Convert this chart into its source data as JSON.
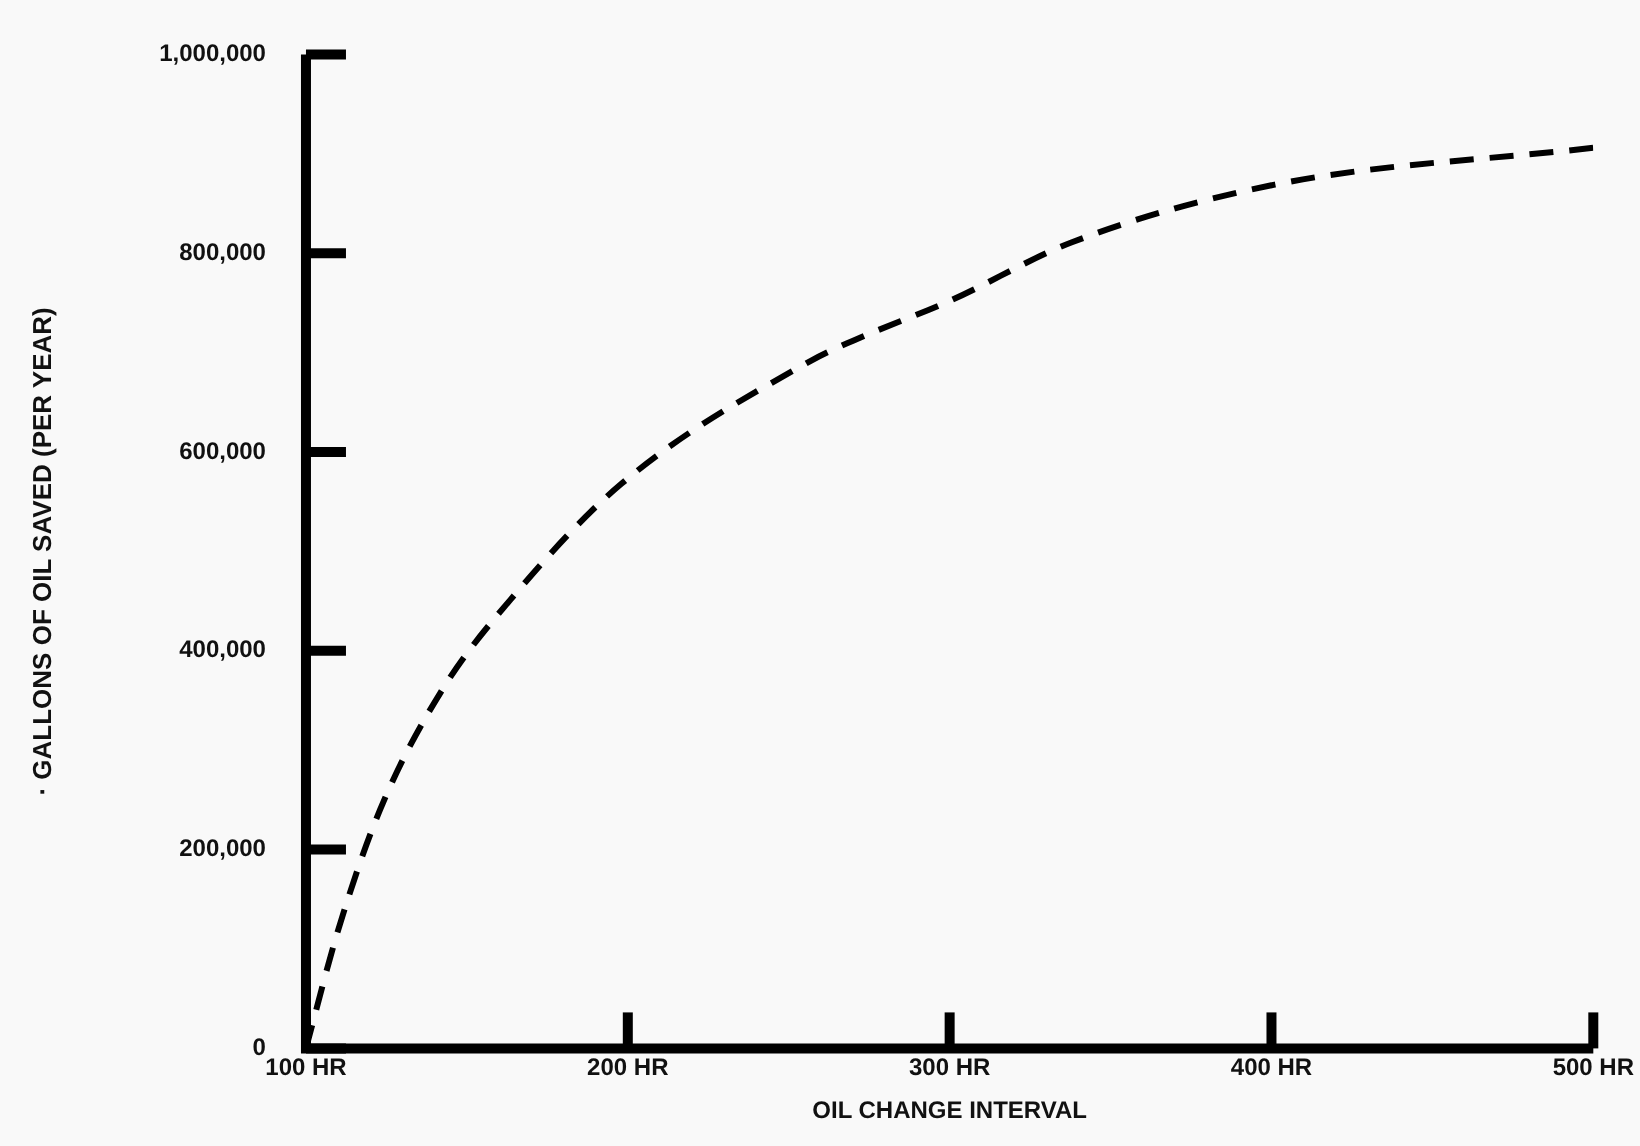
{
  "chart_data": {
    "type": "line",
    "xlabel": "OIL CHANGE INTERVAL",
    "ylabel": "· GALLONS OF OIL SAVED (PER YEAR)",
    "x": [
      100,
      110,
      123,
      142,
      165,
      198,
      257,
      270,
      300,
      338,
      401,
      500
    ],
    "series": [
      {
        "color": "#000000",
        "values": [
          0,
          119000,
          240000,
          359000,
          457000,
          568000,
          692000,
          712000,
          752000,
          811000,
          869000,
          906000
        ]
      }
    ],
    "xlim": [
      100,
      500
    ],
    "xticks": [
      {
        "value": 100,
        "label": "100 HR"
      },
      {
        "value": 200,
        "label": "200 HR"
      },
      {
        "value": 300,
        "label": "300 HR"
      },
      {
        "value": 400,
        "label": "400 HR"
      },
      {
        "value": 500,
        "label": "500 HR"
      }
    ],
    "ylim": [
      0,
      1000000
    ],
    "yticks": [
      0,
      {
        "value": 200000,
        "label": "200,000"
      },
      {
        "value": 400000,
        "label": "400,000"
      },
      {
        "value": 600000,
        "label": "600,000"
      },
      {
        "value": 800000,
        "label": "800,000"
      },
      {
        "value": 1000000,
        "label": "1,000,000"
      }
    ],
    "line_style": "dashed",
    "marker": "none",
    "grid": false,
    "legend": false
  }
}
